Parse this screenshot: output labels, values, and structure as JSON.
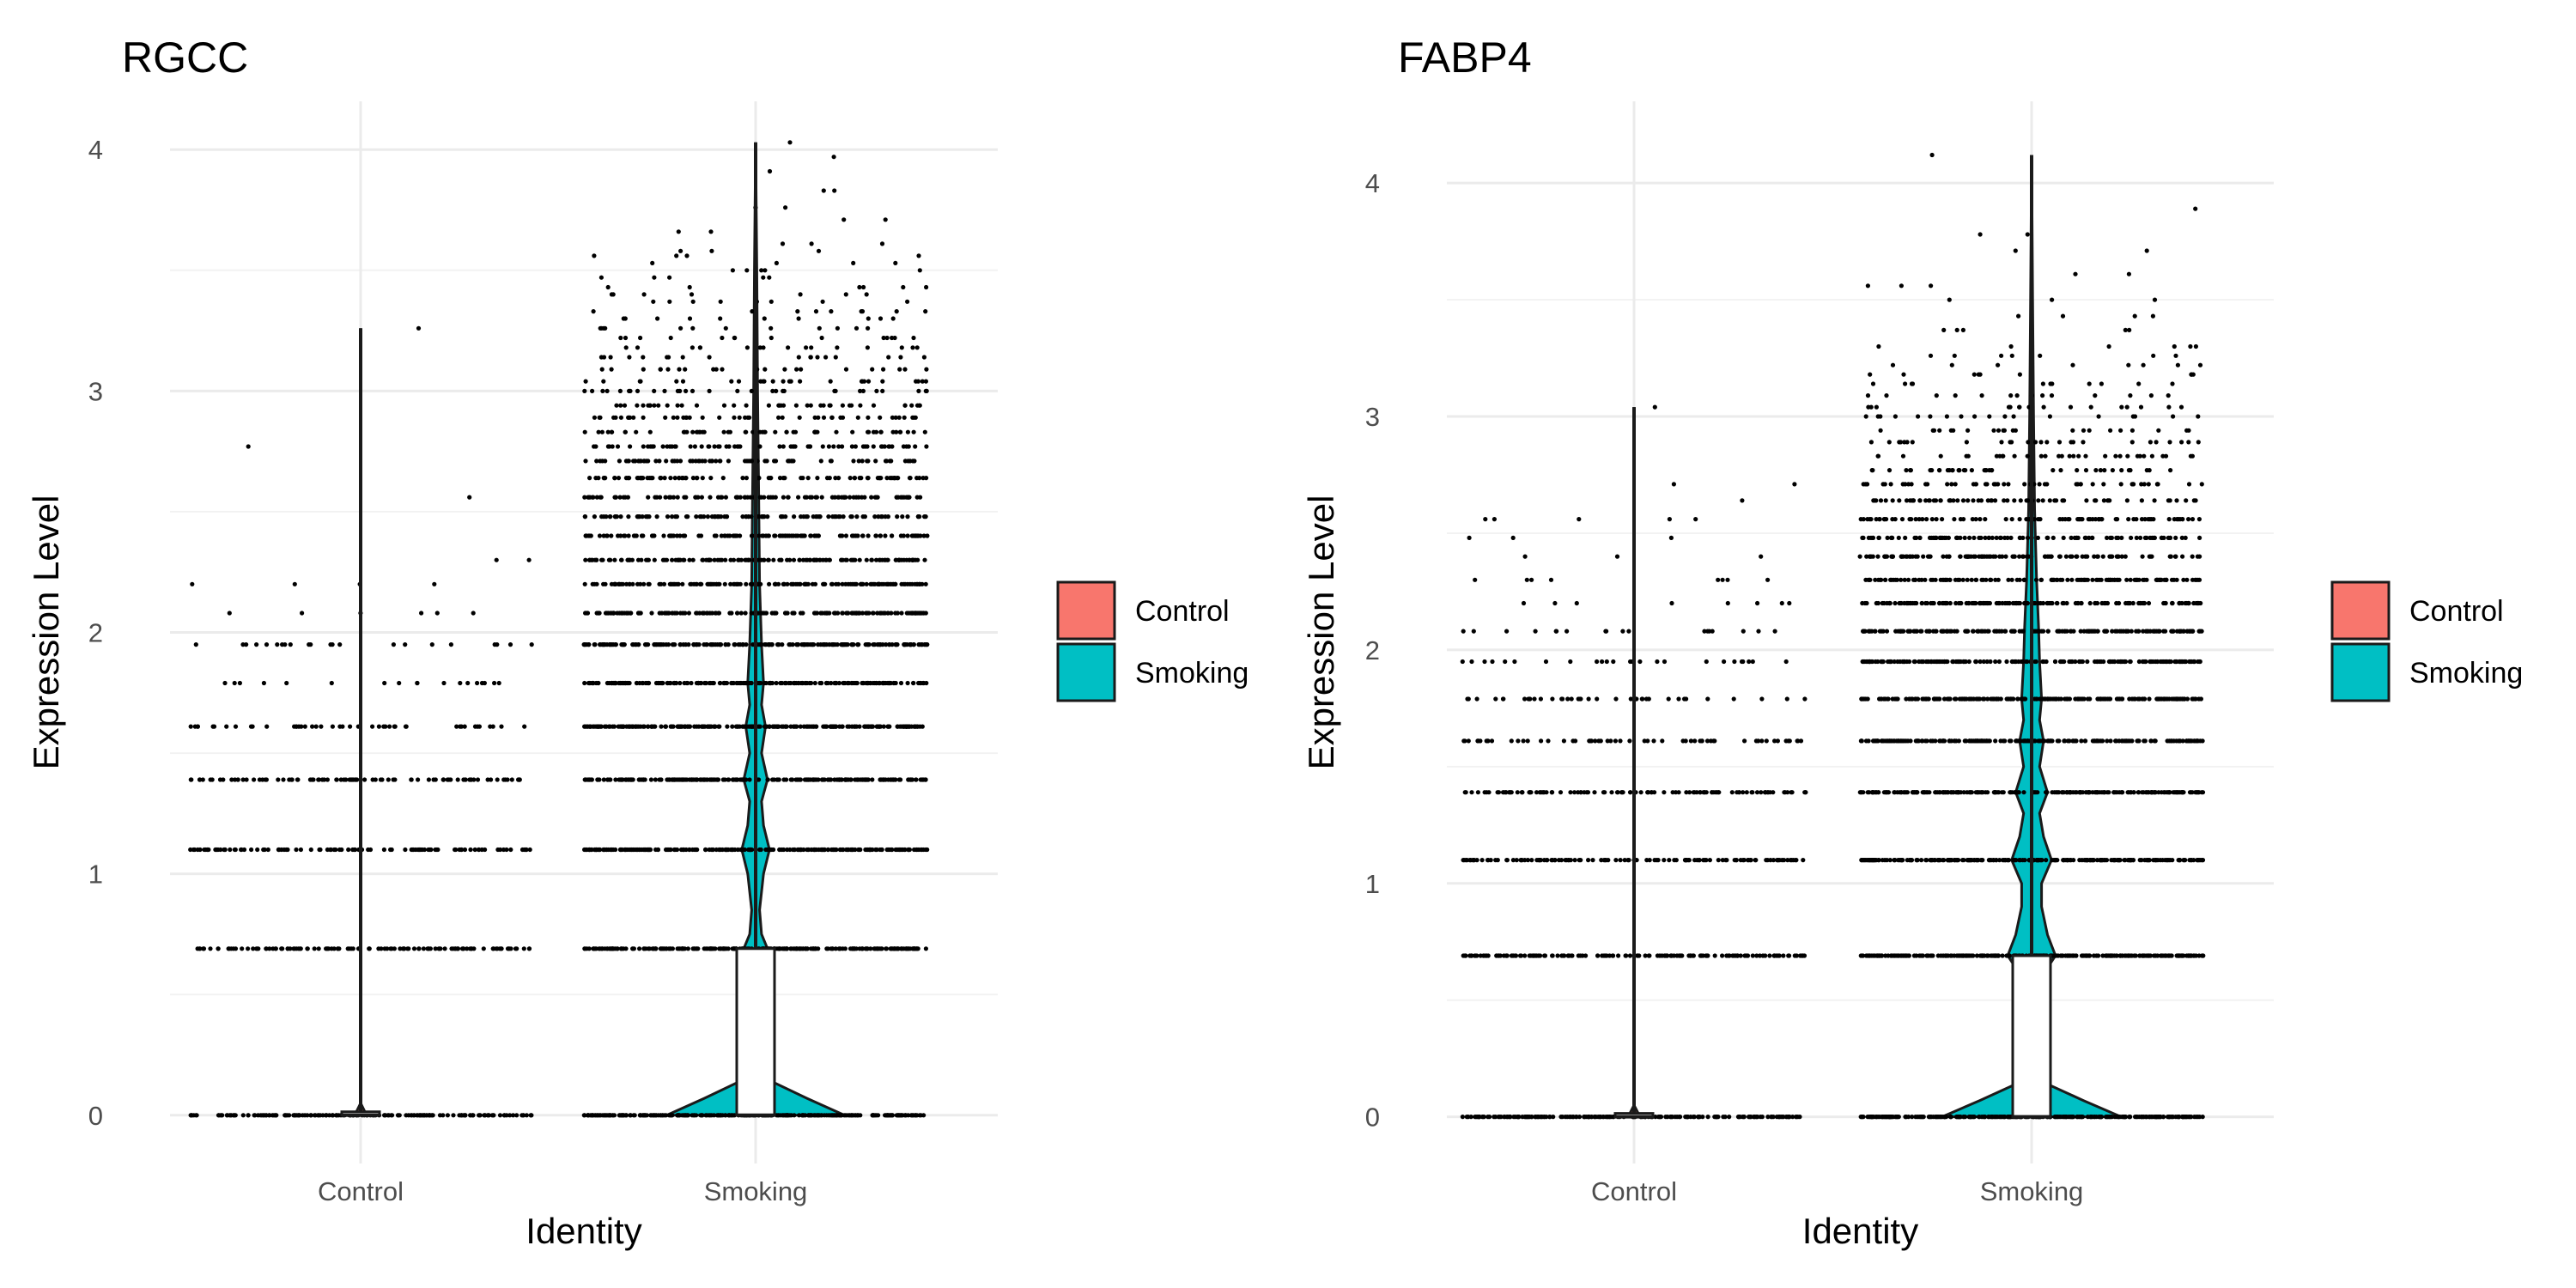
{
  "colors": {
    "Control": "#F8766D",
    "Smoking": "#00BFC4",
    "point": "#000000"
  },
  "chart_data": [
    {
      "type": "violin",
      "title": "RGCC",
      "xlabel": "Identity",
      "ylabel": "Expression Level",
      "categories": [
        "Control",
        "Smoking"
      ],
      "y_ticks": [
        0,
        1,
        2,
        3,
        4
      ],
      "ylim": [
        -0.2,
        4.2
      ],
      "legend": {
        "position": "right",
        "entries": [
          "Control",
          "Smoking"
        ]
      },
      "grid": true,
      "series": [
        {
          "group": "Control",
          "median": 0,
          "q1": 0,
          "q3": 0,
          "min": 0,
          "max": 3.26,
          "violin_max_width": 0.03,
          "violin_profile": [
            [
              0,
              0.03
            ],
            [
              0.05,
              0.0
            ],
            [
              3.26,
              0.0
            ]
          ],
          "point_levels": [
            {
              "y": 0,
              "n": 180
            },
            {
              "y": 0.69,
              "n": 120
            },
            {
              "y": 1.1,
              "n": 100
            },
            {
              "y": 1.39,
              "n": 90
            },
            {
              "y": 1.61,
              "n": 45
            },
            {
              "y": 1.79,
              "n": 18
            },
            {
              "y": 1.95,
              "n": 22
            },
            {
              "y": 2.08,
              "n": 6
            },
            {
              "y": 2.2,
              "n": 4
            },
            {
              "y": 2.3,
              "n": 2
            },
            {
              "y": 2.56,
              "n": 1
            },
            {
              "y": 2.77,
              "n": 1
            },
            {
              "y": 3.26,
              "n": 1
            }
          ]
        },
        {
          "group": "Smoking",
          "median": 0,
          "q1": 0,
          "q3": 0.69,
          "min": 0,
          "max": 4.03,
          "violin_max_width": 0.45,
          "violin_profile": [
            [
              0,
              0.45
            ],
            [
              0.07,
              0.26
            ],
            [
              0.14,
              0.08
            ],
            [
              0.3,
              0.05
            ],
            [
              0.6,
              0.04
            ],
            [
              0.69,
              0.06
            ],
            [
              0.75,
              0.03
            ],
            [
              0.85,
              0.02
            ],
            [
              1.0,
              0.04
            ],
            [
              1.1,
              0.07
            ],
            [
              1.2,
              0.04
            ],
            [
              1.3,
              0.03
            ],
            [
              1.39,
              0.06
            ],
            [
              1.5,
              0.03
            ],
            [
              1.61,
              0.05
            ],
            [
              1.7,
              0.03
            ],
            [
              1.79,
              0.04
            ],
            [
              1.95,
              0.03
            ],
            [
              2.2,
              0.02
            ],
            [
              2.6,
              0.015
            ],
            [
              3.0,
              0.01
            ],
            [
              3.5,
              0.006
            ],
            [
              4.03,
              0.0
            ]
          ],
          "point_levels": [
            {
              "y": 0,
              "n": 300
            },
            {
              "y": 0.69,
              "n": 260
            },
            {
              "y": 1.1,
              "n": 240
            },
            {
              "y": 1.39,
              "n": 230
            },
            {
              "y": 1.61,
              "n": 220
            },
            {
              "y": 1.79,
              "n": 210
            },
            {
              "y": 1.95,
              "n": 200
            },
            {
              "y": 2.08,
              "n": 180
            },
            {
              "y": 2.2,
              "n": 160
            },
            {
              "y": 2.3,
              "n": 140
            },
            {
              "y": 2.4,
              "n": 120
            },
            {
              "y": 2.48,
              "n": 105
            },
            {
              "y": 2.56,
              "n": 95
            },
            {
              "y": 2.64,
              "n": 85
            },
            {
              "y": 2.71,
              "n": 75
            },
            {
              "y": 2.77,
              "n": 65
            },
            {
              "y": 2.83,
              "n": 55
            },
            {
              "y": 2.89,
              "n": 45
            },
            {
              "y": 2.94,
              "n": 40
            },
            {
              "y": 3.0,
              "n": 30
            },
            {
              "y": 3.04,
              "n": 26
            },
            {
              "y": 3.09,
              "n": 22
            },
            {
              "y": 3.14,
              "n": 18
            },
            {
              "y": 3.18,
              "n": 16
            },
            {
              "y": 3.22,
              "n": 14
            },
            {
              "y": 3.26,
              "n": 12
            },
            {
              "y": 3.3,
              "n": 10
            },
            {
              "y": 3.33,
              "n": 9
            },
            {
              "y": 3.37,
              "n": 8
            },
            {
              "y": 3.4,
              "n": 7
            },
            {
              "y": 3.43,
              "n": 6
            },
            {
              "y": 3.47,
              "n": 5
            },
            {
              "y": 3.5,
              "n": 5
            },
            {
              "y": 3.53,
              "n": 4
            },
            {
              "y": 3.56,
              "n": 4
            },
            {
              "y": 3.58,
              "n": 3
            },
            {
              "y": 3.61,
              "n": 3
            },
            {
              "y": 3.66,
              "n": 2
            },
            {
              "y": 3.71,
              "n": 2
            },
            {
              "y": 3.76,
              "n": 2
            },
            {
              "y": 3.83,
              "n": 2
            },
            {
              "y": 3.91,
              "n": 1
            },
            {
              "y": 3.97,
              "n": 1
            },
            {
              "y": 4.03,
              "n": 1
            }
          ]
        }
      ]
    },
    {
      "type": "violin",
      "title": "FABP4",
      "xlabel": "Identity",
      "ylabel": "Expression Level",
      "categories": [
        "Control",
        "Smoking"
      ],
      "y_ticks": [
        0,
        1,
        2,
        3,
        4
      ],
      "ylim": [
        -0.2,
        4.35
      ],
      "legend": {
        "position": "right",
        "entries": [
          "Control",
          "Smoking"
        ]
      },
      "grid": true,
      "series": [
        {
          "group": "Control",
          "median": 0,
          "q1": 0,
          "q3": 0,
          "min": 0,
          "max": 3.04,
          "violin_max_width": 0.03,
          "violin_profile": [
            [
              0,
              0.03
            ],
            [
              0.05,
              0.0
            ],
            [
              3.04,
              0.0
            ]
          ],
          "point_levels": [
            {
              "y": 0,
              "n": 200
            },
            {
              "y": 0.69,
              "n": 150
            },
            {
              "y": 1.1,
              "n": 120
            },
            {
              "y": 1.39,
              "n": 110
            },
            {
              "y": 1.61,
              "n": 60
            },
            {
              "y": 1.79,
              "n": 40
            },
            {
              "y": 1.95,
              "n": 25
            },
            {
              "y": 2.08,
              "n": 18
            },
            {
              "y": 2.2,
              "n": 8
            },
            {
              "y": 2.3,
              "n": 8
            },
            {
              "y": 2.4,
              "n": 3
            },
            {
              "y": 2.48,
              "n": 3
            },
            {
              "y": 2.56,
              "n": 5
            },
            {
              "y": 2.64,
              "n": 1
            },
            {
              "y": 2.71,
              "n": 2
            },
            {
              "y": 3.04,
              "n": 1
            }
          ]
        },
        {
          "group": "Smoking",
          "median": 0,
          "q1": 0,
          "q3": 0.69,
          "min": 0,
          "max": 4.12,
          "violin_max_width": 0.45,
          "violin_profile": [
            [
              0,
              0.45
            ],
            [
              0.07,
              0.26
            ],
            [
              0.14,
              0.08
            ],
            [
              0.3,
              0.05
            ],
            [
              0.6,
              0.05
            ],
            [
              0.69,
              0.12
            ],
            [
              0.78,
              0.08
            ],
            [
              0.9,
              0.05
            ],
            [
              1.0,
              0.05
            ],
            [
              1.1,
              0.1
            ],
            [
              1.2,
              0.06
            ],
            [
              1.3,
              0.04
            ],
            [
              1.39,
              0.08
            ],
            [
              1.5,
              0.04
            ],
            [
              1.61,
              0.06
            ],
            [
              1.7,
              0.04
            ],
            [
              1.79,
              0.05
            ],
            [
              1.95,
              0.04
            ],
            [
              2.1,
              0.035
            ],
            [
              2.3,
              0.025
            ],
            [
              2.6,
              0.015
            ],
            [
              3.0,
              0.01
            ],
            [
              3.5,
              0.005
            ],
            [
              4.12,
              0.0
            ]
          ],
          "point_levels": [
            {
              "y": 0,
              "n": 300
            },
            {
              "y": 0.69,
              "n": 260
            },
            {
              "y": 1.1,
              "n": 240
            },
            {
              "y": 1.39,
              "n": 230
            },
            {
              "y": 1.61,
              "n": 220
            },
            {
              "y": 1.79,
              "n": 200
            },
            {
              "y": 1.95,
              "n": 190
            },
            {
              "y": 2.08,
              "n": 170
            },
            {
              "y": 2.2,
              "n": 150
            },
            {
              "y": 2.3,
              "n": 130
            },
            {
              "y": 2.4,
              "n": 110
            },
            {
              "y": 2.48,
              "n": 95
            },
            {
              "y": 2.56,
              "n": 80
            },
            {
              "y": 2.64,
              "n": 65
            },
            {
              "y": 2.71,
              "n": 50
            },
            {
              "y": 2.77,
              "n": 40
            },
            {
              "y": 2.83,
              "n": 32
            },
            {
              "y": 2.89,
              "n": 26
            },
            {
              "y": 2.94,
              "n": 22
            },
            {
              "y": 3.0,
              "n": 18
            },
            {
              "y": 3.04,
              "n": 16
            },
            {
              "y": 3.09,
              "n": 14
            },
            {
              "y": 3.14,
              "n": 11
            },
            {
              "y": 3.18,
              "n": 9
            },
            {
              "y": 3.22,
              "n": 8
            },
            {
              "y": 3.26,
              "n": 7
            },
            {
              "y": 3.3,
              "n": 6
            },
            {
              "y": 3.37,
              "n": 5
            },
            {
              "y": 3.43,
              "n": 4
            },
            {
              "y": 3.5,
              "n": 3
            },
            {
              "y": 3.56,
              "n": 3
            },
            {
              "y": 3.61,
              "n": 2
            },
            {
              "y": 3.71,
              "n": 2
            },
            {
              "y": 3.78,
              "n": 2
            },
            {
              "y": 3.89,
              "n": 1
            },
            {
              "y": 4.12,
              "n": 1
            }
          ]
        }
      ]
    }
  ]
}
